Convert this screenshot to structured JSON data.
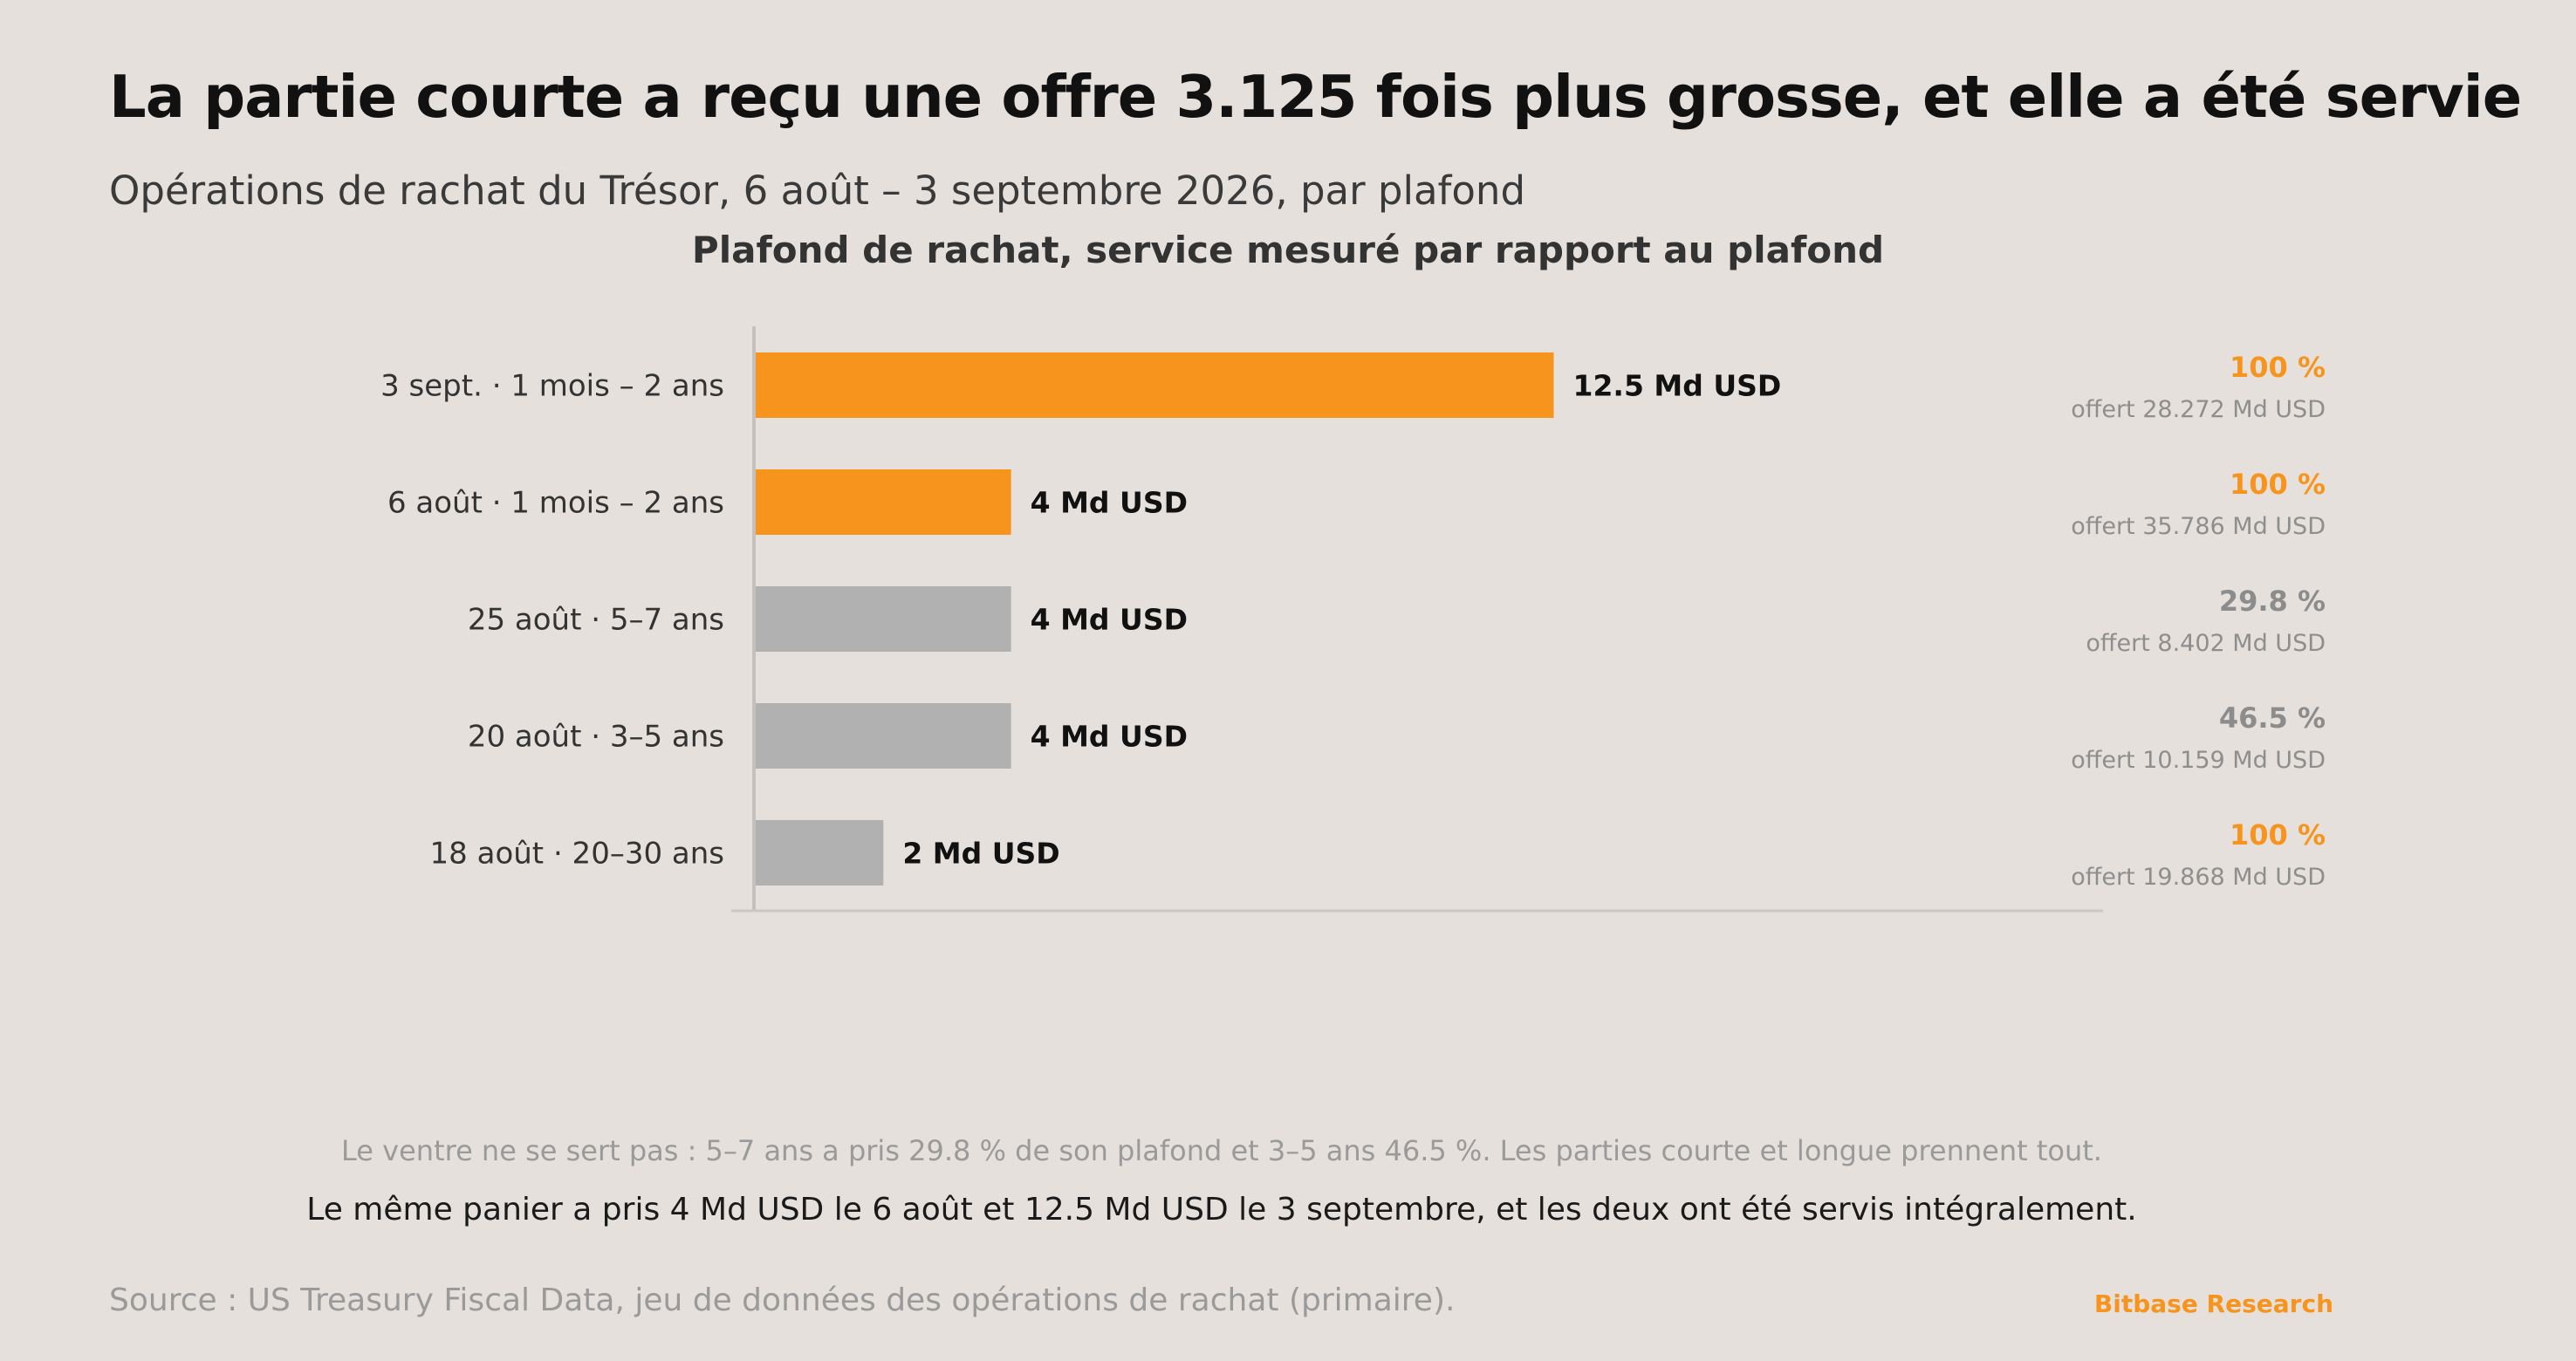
{
  "title": "La partie courte a reçu une offre 3.125 fois plus grosse, et elle a été servie",
  "subtitle": "Opérations de rachat du Trésor, 6 août – 3 septembre 2026, par plafond",
  "colors": {
    "accent": "#f7941d",
    "neutral": "#b1b1b1",
    "background": "#e5e0db",
    "muted_text": "#8e8e8e"
  },
  "chart_data": {
    "type": "bar",
    "orientation": "horizontal",
    "title": "Plafond de rachat, service mesuré par rapport au plafond",
    "categories": [
      "3 sept. · 1 mois – 2 ans",
      "6 août · 1 mois – 2 ans",
      "25 août · 5–7 ans",
      "20 août · 3–5 ans",
      "18 août · 20–30 ans"
    ],
    "values": [
      12.5,
      4,
      4,
      4,
      2
    ],
    "value_labels": [
      "12.5 Md USD",
      "4 Md USD",
      "4 Md USD",
      "4 Md USD",
      "2 Md USD"
    ],
    "highlight": [
      true,
      true,
      false,
      false,
      false
    ],
    "service_pct_labels": [
      "100 %",
      "100 %",
      "29.8 %",
      "46.5 %",
      "100 %"
    ],
    "service_pct": [
      100,
      100,
      29.8,
      46.5,
      100
    ],
    "offered_labels": [
      "offert 28.272 Md USD",
      "offert 35.786 Md USD",
      "offert 8.402 Md USD",
      "offert 10.159 Md USD",
      "offert 19.868 Md USD"
    ],
    "offered": [
      28.272,
      35.786,
      8.402,
      10.159,
      19.868
    ],
    "xlim": [
      0,
      21
    ],
    "grid": false,
    "legend": "none"
  },
  "notes": {
    "line1": "Le ventre ne se sert pas : 5–7 ans a pris 29.8 % de son plafond et 3–5 ans 46.5 %. Les parties courte et longue prennent tout.",
    "line2": "Le même panier a pris 4 Md USD le 6 août et 12.5 Md USD le 3 septembre, et les deux ont été servis intégralement."
  },
  "footer": {
    "source": "Source : US Treasury Fiscal Data, jeu de données des opérations de rachat (primaire).",
    "brand": "Bitbase Research"
  }
}
